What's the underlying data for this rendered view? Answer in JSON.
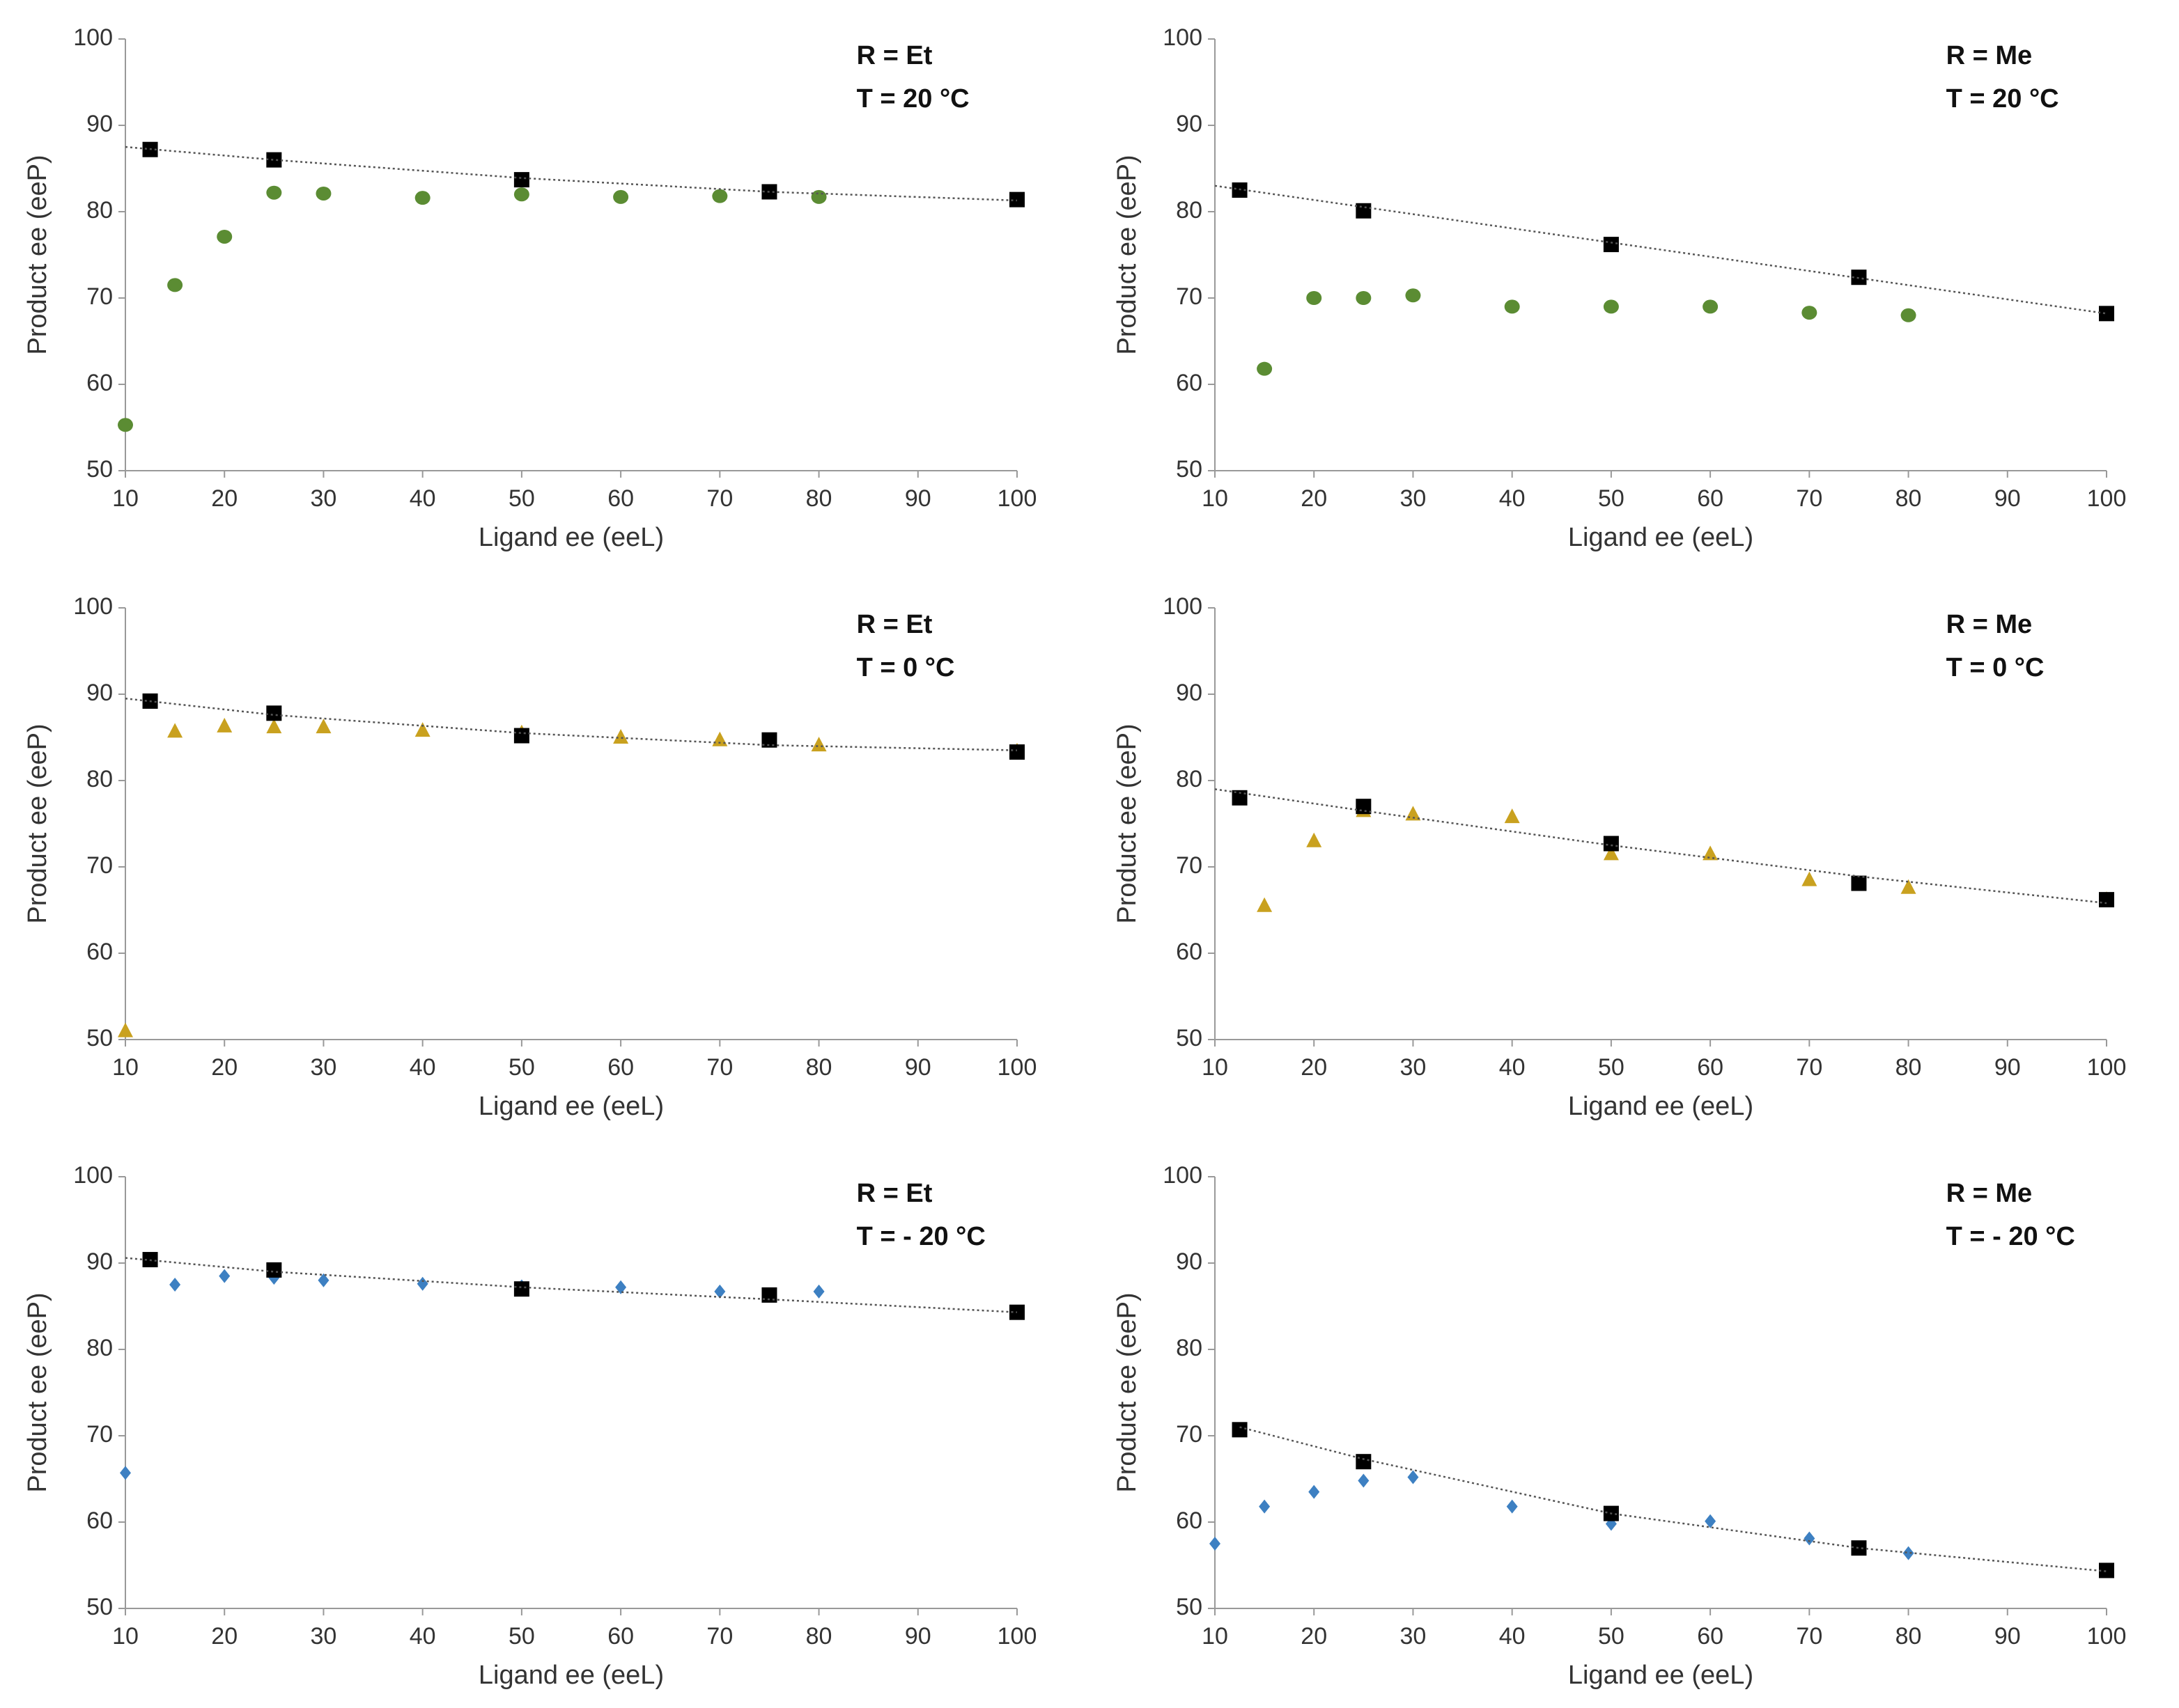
{
  "chart_data": [
    {
      "type": "scatter",
      "annotations": [
        "R = Et",
        "T = 20 °C"
      ],
      "xlabel": "Ligand ee (eeL)",
      "ylabel": "Product ee (eeP)",
      "xlim": [
        10,
        100
      ],
      "ylim": [
        50,
        100
      ],
      "xticks": [
        10,
        20,
        30,
        40,
        50,
        60,
        70,
        80,
        90,
        100
      ],
      "yticks": [
        50,
        60,
        70,
        80,
        90,
        100
      ],
      "series": [
        {
          "color": "#5b8c33",
          "marker": "circle",
          "x": [
            10,
            15,
            20,
            25,
            30,
            40,
            50,
            60,
            70,
            80,
            100
          ],
          "values": [
            55.3,
            71.5,
            77.1,
            82.2,
            82.1,
            81.6,
            82,
            81.7,
            81.8,
            81.7,
            81.4
          ]
        },
        {
          "color": "#000000",
          "marker": "square",
          "x": [
            12.5,
            25,
            50,
            75,
            100
          ],
          "values": [
            87.2,
            86,
            83.7,
            82.3,
            81.4
          ]
        },
        {
          "color": "#555555",
          "line": "dotted",
          "x": [
            10,
            25,
            50,
            75,
            100
          ],
          "values": [
            87.5,
            86.0,
            83.9,
            82.3,
            81.3
          ]
        }
      ]
    },
    {
      "type": "scatter",
      "annotations": [
        "R = Me",
        "T = 20 °C"
      ],
      "xlabel": "Ligand ee (eeL)",
      "ylabel": "Product ee (eeP)",
      "xlim": [
        10,
        100
      ],
      "ylim": [
        50,
        100
      ],
      "xticks": [
        10,
        20,
        30,
        40,
        50,
        60,
        70,
        80,
        90,
        100
      ],
      "yticks": [
        50,
        60,
        70,
        80,
        90,
        100
      ],
      "series": [
        {
          "color": "#5b8c33",
          "marker": "circle",
          "x": [
            15,
            20,
            25,
            30,
            40,
            50,
            60,
            70,
            80,
            100
          ],
          "values": [
            61.8,
            70,
            70,
            70.3,
            69,
            69,
            69,
            68.3,
            68,
            68.2
          ]
        },
        {
          "color": "#000000",
          "marker": "square",
          "x": [
            12.5,
            25,
            50,
            75,
            100
          ],
          "values": [
            82.5,
            80.1,
            76.2,
            72.4,
            68.2
          ]
        },
        {
          "color": "#555555",
          "line": "dotted",
          "x": [
            10,
            55,
            100
          ],
          "values": [
            83,
            75.6,
            68.2
          ]
        }
      ]
    },
    {
      "type": "scatter",
      "annotations": [
        "R = Et",
        "T = 0 °C"
      ],
      "xlabel": "Ligand ee (eeL)",
      "ylabel": "Product ee (eeP)",
      "xlim": [
        10,
        100
      ],
      "ylim": [
        50,
        100
      ],
      "xticks": [
        10,
        20,
        30,
        40,
        50,
        60,
        70,
        80,
        90,
        100
      ],
      "yticks": [
        50,
        60,
        70,
        80,
        90,
        100
      ],
      "series": [
        {
          "color": "#c9a11f",
          "marker": "triangle",
          "x": [
            10,
            15,
            20,
            25,
            30,
            40,
            50,
            60,
            70,
            80,
            100
          ],
          "values": [
            51,
            85.7,
            86.3,
            86.2,
            86.2,
            85.8,
            85.5,
            85,
            84.7,
            84.1,
            83.4
          ]
        },
        {
          "color": "#000000",
          "marker": "square",
          "x": [
            12.5,
            25,
            50,
            75,
            100
          ],
          "values": [
            89.2,
            87.8,
            85.2,
            84.7,
            83.3
          ]
        },
        {
          "color": "#555555",
          "line": "dotted",
          "x": [
            10,
            25,
            50,
            75,
            100
          ],
          "values": [
            89.5,
            87.6,
            85.5,
            84.1,
            83.5
          ]
        }
      ]
    },
    {
      "type": "scatter",
      "annotations": [
        "R = Me",
        "T = 0 °C"
      ],
      "xlabel": "Ligand ee (eeL)",
      "ylabel": "Product ee (eeP)",
      "xlim": [
        10,
        100
      ],
      "ylim": [
        50,
        100
      ],
      "xticks": [
        10,
        20,
        30,
        40,
        50,
        60,
        70,
        80,
        90,
        100
      ],
      "yticks": [
        50,
        60,
        70,
        80,
        90,
        100
      ],
      "series": [
        {
          "color": "#c9a11f",
          "marker": "triangle",
          "x": [
            15,
            20,
            25,
            30,
            40,
            50,
            60,
            70,
            80,
            100
          ],
          "values": [
            65.5,
            73,
            76.5,
            76.1,
            75.8,
            71.5,
            71.5,
            68.5,
            67.6,
            66.2
          ]
        },
        {
          "color": "#000000",
          "marker": "square",
          "x": [
            12.5,
            25,
            50,
            75,
            100
          ],
          "values": [
            78,
            77,
            72.7,
            68.1,
            66.2
          ]
        },
        {
          "color": "#555555",
          "line": "dotted",
          "x": [
            10,
            25,
            50,
            75,
            100
          ],
          "values": [
            79,
            76.5,
            72.5,
            68.9,
            65.8
          ]
        }
      ]
    },
    {
      "type": "scatter",
      "annotations": [
        "R = Et",
        "T = - 20 °C"
      ],
      "xlabel": "Ligand ee (eeL)",
      "ylabel": "Product ee (eeP)",
      "xlim": [
        10,
        100
      ],
      "ylim": [
        50,
        100
      ],
      "xticks": [
        10,
        20,
        30,
        40,
        50,
        60,
        70,
        80,
        90,
        100
      ],
      "yticks": [
        50,
        60,
        70,
        80,
        90,
        100
      ],
      "series": [
        {
          "color": "#3d80c2",
          "marker": "diamond",
          "x": [
            10,
            15,
            20,
            25,
            30,
            40,
            50,
            60,
            70,
            80,
            100
          ],
          "values": [
            65.7,
            87.5,
            88.5,
            88.3,
            88,
            87.6,
            87.3,
            87.2,
            86.7,
            86.7,
            84.3
          ]
        },
        {
          "color": "#000000",
          "marker": "square",
          "x": [
            12.5,
            25,
            50,
            75,
            100
          ],
          "values": [
            90.4,
            89.2,
            87,
            86.3,
            84.3
          ]
        },
        {
          "color": "#555555",
          "line": "dotted",
          "x": [
            10,
            25,
            50,
            75,
            100
          ],
          "values": [
            90.6,
            89.0,
            87.2,
            85.8,
            84.3
          ]
        }
      ]
    },
    {
      "type": "scatter",
      "annotations": [
        "R = Me",
        "T = - 20 °C"
      ],
      "xlabel": "Ligand ee (eeL)",
      "ylabel": "Product ee (eeP)",
      "xlim": [
        10,
        100
      ],
      "ylim": [
        50,
        100
      ],
      "xticks": [
        10,
        20,
        30,
        40,
        50,
        60,
        70,
        80,
        90,
        100
      ],
      "yticks": [
        50,
        60,
        70,
        80,
        90,
        100
      ],
      "series": [
        {
          "color": "#3d80c2",
          "marker": "diamond",
          "x": [
            10,
            15,
            20,
            25,
            30,
            40,
            50,
            60,
            70,
            80,
            100
          ],
          "values": [
            57.5,
            61.8,
            63.5,
            64.8,
            65.2,
            61.8,
            59.8,
            60.1,
            58.1,
            56.4,
            54.5
          ]
        },
        {
          "color": "#000000",
          "marker": "square",
          "x": [
            12.5,
            25,
            50,
            75,
            100
          ],
          "values": [
            70.7,
            67,
            61,
            57,
            54.4
          ]
        },
        {
          "color": "#555555",
          "line": "dotted",
          "x": [
            12.5,
            25,
            50,
            75,
            100
          ],
          "values": [
            71,
            67.3,
            61,
            57,
            54.3
          ]
        }
      ]
    }
  ]
}
